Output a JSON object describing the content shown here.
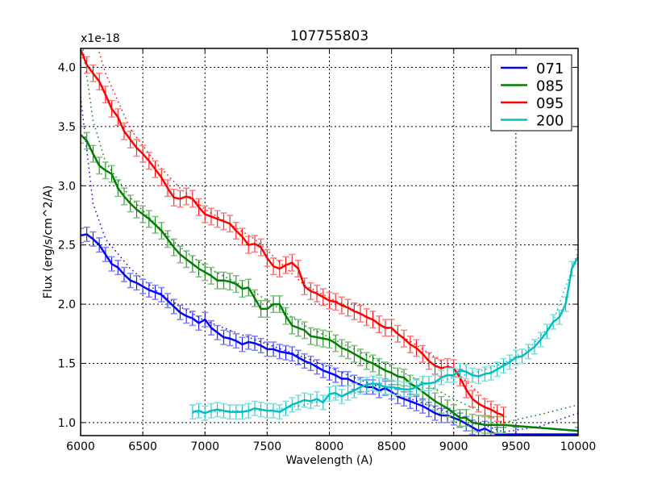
{
  "chart_data": {
    "type": "line",
    "title": "107755803",
    "xlabel": "Wavelength (A)",
    "ylabel": "Flux (erg/s/cm^2/A)",
    "y_offset_label": "x1e-18",
    "xlim": [
      6000,
      10000
    ],
    "ylim": [
      0.89,
      4.16
    ],
    "xticks": [
      6000,
      6500,
      7000,
      7500,
      8000,
      8500,
      9000,
      9500,
      10000
    ],
    "xtick_labels": [
      "6000",
      "6500",
      "7000",
      "7500",
      "8000",
      "8500",
      "9000",
      "9500",
      "10000"
    ],
    "yticks": [
      1.0,
      1.5,
      2.0,
      2.5,
      3.0,
      3.5,
      4.0
    ],
    "ytick_labels": [
      "1.0",
      "1.5",
      "2.0",
      "2.5",
      "3.0",
      "3.5",
      "4.0"
    ],
    "grid": true,
    "legend_position": "upper right",
    "series": [
      {
        "name": "071",
        "color": "#0000ff",
        "errcolor": "#7f7fff",
        "x": [
          6000,
          6050,
          6100,
          6150,
          6200,
          6250,
          6300,
          6350,
          6400,
          6450,
          6500,
          6550,
          6600,
          6650,
          6700,
          6750,
          6800,
          6850,
          6900,
          6950,
          7000,
          7050,
          7100,
          7150,
          7200,
          7250,
          7300,
          7350,
          7400,
          7450,
          7500,
          7550,
          7600,
          7650,
          7700,
          7750,
          7800,
          7850,
          7900,
          7950,
          8000,
          8050,
          8100,
          8150,
          8200,
          8250,
          8300,
          8350,
          8400,
          8450,
          8500,
          8550,
          8600,
          8650,
          8700,
          8750,
          8800,
          8850,
          8900,
          8950,
          9000,
          9050,
          9100,
          9150,
          9200,
          9250,
          9300,
          9350,
          9400,
          9500,
          10000
        ],
        "y": [
          2.58,
          2.59,
          2.55,
          2.5,
          2.42,
          2.34,
          2.31,
          2.25,
          2.2,
          2.18,
          2.15,
          2.12,
          2.1,
          2.08,
          2.03,
          1.98,
          1.93,
          1.9,
          1.88,
          1.84,
          1.87,
          1.8,
          1.76,
          1.72,
          1.71,
          1.69,
          1.66,
          1.68,
          1.67,
          1.65,
          1.62,
          1.62,
          1.6,
          1.59,
          1.58,
          1.55,
          1.52,
          1.5,
          1.47,
          1.44,
          1.42,
          1.4,
          1.37,
          1.37,
          1.34,
          1.32,
          1.3,
          1.3,
          1.27,
          1.29,
          1.26,
          1.22,
          1.2,
          1.18,
          1.16,
          1.14,
          1.11,
          1.08,
          1.06,
          1.06,
          1.04,
          1.02,
          0.99,
          0.96,
          0.93,
          0.95,
          0.92,
          0.9,
          0.9,
          0.9,
          0.9
        ],
        "err": 0.06,
        "fit_x": [
          6000,
          6100,
          6200,
          6400,
          6600,
          6800,
          7000,
          7400,
          7800,
          8200,
          8600,
          9000,
          9400,
          9700,
          10000
        ],
        "fit_y": [
          3.75,
          2.85,
          2.55,
          2.3,
          2.12,
          1.98,
          1.86,
          1.7,
          1.55,
          1.38,
          1.22,
          1.07,
          0.92,
          0.97,
          1.08
        ]
      },
      {
        "name": "085",
        "color": "#008000",
        "errcolor": "#7fbf7f",
        "x": [
          6000,
          6050,
          6100,
          6150,
          6200,
          6250,
          6300,
          6350,
          6400,
          6450,
          6500,
          6550,
          6600,
          6650,
          6700,
          6750,
          6800,
          6850,
          6900,
          6950,
          7000,
          7050,
          7100,
          7150,
          7200,
          7250,
          7300,
          7350,
          7400,
          7450,
          7500,
          7550,
          7600,
          7650,
          7700,
          7750,
          7800,
          7850,
          7900,
          7950,
          8000,
          8050,
          8100,
          8150,
          8200,
          8250,
          8300,
          8350,
          8400,
          8450,
          8500,
          8550,
          8600,
          8650,
          8700,
          8750,
          8800,
          8850,
          8900,
          8950,
          9000,
          9050,
          9100,
          9150,
          9200,
          9250,
          9300,
          9350,
          9400,
          10000
        ],
        "y": [
          3.43,
          3.38,
          3.27,
          3.17,
          3.13,
          3.1,
          2.98,
          2.91,
          2.85,
          2.8,
          2.76,
          2.72,
          2.67,
          2.62,
          2.55,
          2.48,
          2.42,
          2.38,
          2.34,
          2.3,
          2.27,
          2.24,
          2.2,
          2.2,
          2.19,
          2.17,
          2.13,
          2.14,
          2.05,
          1.96,
          1.96,
          2.0,
          2.0,
          1.9,
          1.82,
          1.8,
          1.78,
          1.73,
          1.72,
          1.71,
          1.7,
          1.67,
          1.63,
          1.61,
          1.58,
          1.55,
          1.52,
          1.5,
          1.47,
          1.44,
          1.42,
          1.39,
          1.38,
          1.33,
          1.3,
          1.26,
          1.22,
          1.18,
          1.15,
          1.12,
          1.08,
          1.04,
          1.04,
          1.0,
          0.99,
          0.98,
          0.98,
          0.98,
          0.98,
          0.93
        ],
        "err": 0.07,
        "fit_x": [
          6000,
          6100,
          6200,
          6400,
          6600,
          6800,
          7000,
          7400,
          7800,
          8200,
          8600,
          9000,
          9400,
          9700,
          10000
        ],
        "fit_y": [
          4.3,
          3.55,
          3.2,
          2.9,
          2.68,
          2.48,
          2.32,
          2.1,
          1.82,
          1.62,
          1.42,
          1.2,
          1.0,
          1.07,
          1.15
        ]
      },
      {
        "name": "095",
        "color": "#ff0000",
        "errcolor": "#ff7f7f",
        "x": [
          6000,
          6050,
          6100,
          6150,
          6200,
          6250,
          6300,
          6350,
          6400,
          6450,
          6500,
          6550,
          6600,
          6650,
          6700,
          6750,
          6800,
          6850,
          6900,
          6950,
          7000,
          7050,
          7100,
          7150,
          7200,
          7250,
          7300,
          7350,
          7400,
          7450,
          7500,
          7550,
          7600,
          7650,
          7700,
          7750,
          7800,
          7850,
          7900,
          7950,
          8000,
          8050,
          8100,
          8150,
          8200,
          8250,
          8300,
          8350,
          8400,
          8450,
          8500,
          8550,
          8600,
          8650,
          8700,
          8750,
          8800,
          8850,
          8900,
          8950,
          9000,
          9050,
          9100,
          9150,
          9200,
          9250,
          9300,
          9350,
          9400
        ],
        "y": [
          4.15,
          4.02,
          3.95,
          3.88,
          3.77,
          3.65,
          3.58,
          3.46,
          3.39,
          3.32,
          3.27,
          3.21,
          3.14,
          3.07,
          2.98,
          2.9,
          2.89,
          2.91,
          2.89,
          2.82,
          2.76,
          2.74,
          2.72,
          2.7,
          2.68,
          2.62,
          2.57,
          2.5,
          2.51,
          2.48,
          2.39,
          2.32,
          2.3,
          2.33,
          2.35,
          2.3,
          2.15,
          2.11,
          2.09,
          2.06,
          2.03,
          2.02,
          1.99,
          1.97,
          1.94,
          1.92,
          1.89,
          1.87,
          1.83,
          1.8,
          1.8,
          1.75,
          1.71,
          1.66,
          1.63,
          1.58,
          1.52,
          1.48,
          1.46,
          1.47,
          1.46,
          1.38,
          1.28,
          1.2,
          1.16,
          1.13,
          1.11,
          1.08,
          1.06
        ],
        "err": 0.07,
        "fit_x": [
          6000,
          6100,
          6200,
          6400,
          6600,
          6800,
          7000,
          7400,
          7800,
          8200,
          8600,
          9000,
          9400
        ],
        "fit_y": [
          4.9,
          4.3,
          3.95,
          3.48,
          3.2,
          2.98,
          2.8,
          2.55,
          2.16,
          1.95,
          1.72,
          1.45,
          1.05
        ]
      },
      {
        "name": "200",
        "color": "#00bfbf",
        "errcolor": "#7fdfdf",
        "x": [
          6900,
          6950,
          7000,
          7050,
          7100,
          7150,
          7200,
          7250,
          7300,
          7350,
          7400,
          7450,
          7500,
          7550,
          7600,
          7650,
          7700,
          7750,
          7800,
          7850,
          7900,
          7950,
          8000,
          8050,
          8100,
          8150,
          8200,
          8250,
          8300,
          8350,
          8400,
          8450,
          8500,
          8550,
          8600,
          8650,
          8700,
          8750,
          8800,
          8850,
          8900,
          8950,
          9000,
          9050,
          9100,
          9150,
          9200,
          9250,
          9300,
          9350,
          9400,
          9450,
          9500,
          9550,
          9600,
          9650,
          9700,
          9750,
          9800,
          9850,
          9900,
          9950,
          10000
        ],
        "y": [
          1.09,
          1.1,
          1.08,
          1.1,
          1.11,
          1.1,
          1.09,
          1.09,
          1.09,
          1.1,
          1.12,
          1.11,
          1.1,
          1.1,
          1.09,
          1.12,
          1.15,
          1.17,
          1.19,
          1.18,
          1.2,
          1.17,
          1.24,
          1.25,
          1.22,
          1.25,
          1.27,
          1.3,
          1.32,
          1.33,
          1.32,
          1.3,
          1.3,
          1.29,
          1.28,
          1.28,
          1.3,
          1.33,
          1.33,
          1.34,
          1.38,
          1.4,
          1.4,
          1.44,
          1.43,
          1.4,
          1.39,
          1.41,
          1.42,
          1.45,
          1.48,
          1.51,
          1.55,
          1.56,
          1.6,
          1.64,
          1.7,
          1.77,
          1.85,
          1.89,
          2.0,
          2.3,
          2.4
        ],
        "err": 0.06,
        "fit_x": [
          6900,
          7200,
          7500,
          7800,
          8000,
          8200,
          8400,
          8600,
          8800,
          9000,
          9200,
          9400,
          9600,
          9800,
          10000
        ],
        "fit_y": [
          1.08,
          1.1,
          1.1,
          1.15,
          1.2,
          1.25,
          1.28,
          1.3,
          1.33,
          1.38,
          1.43,
          1.5,
          1.62,
          1.85,
          2.45
        ]
      }
    ]
  }
}
